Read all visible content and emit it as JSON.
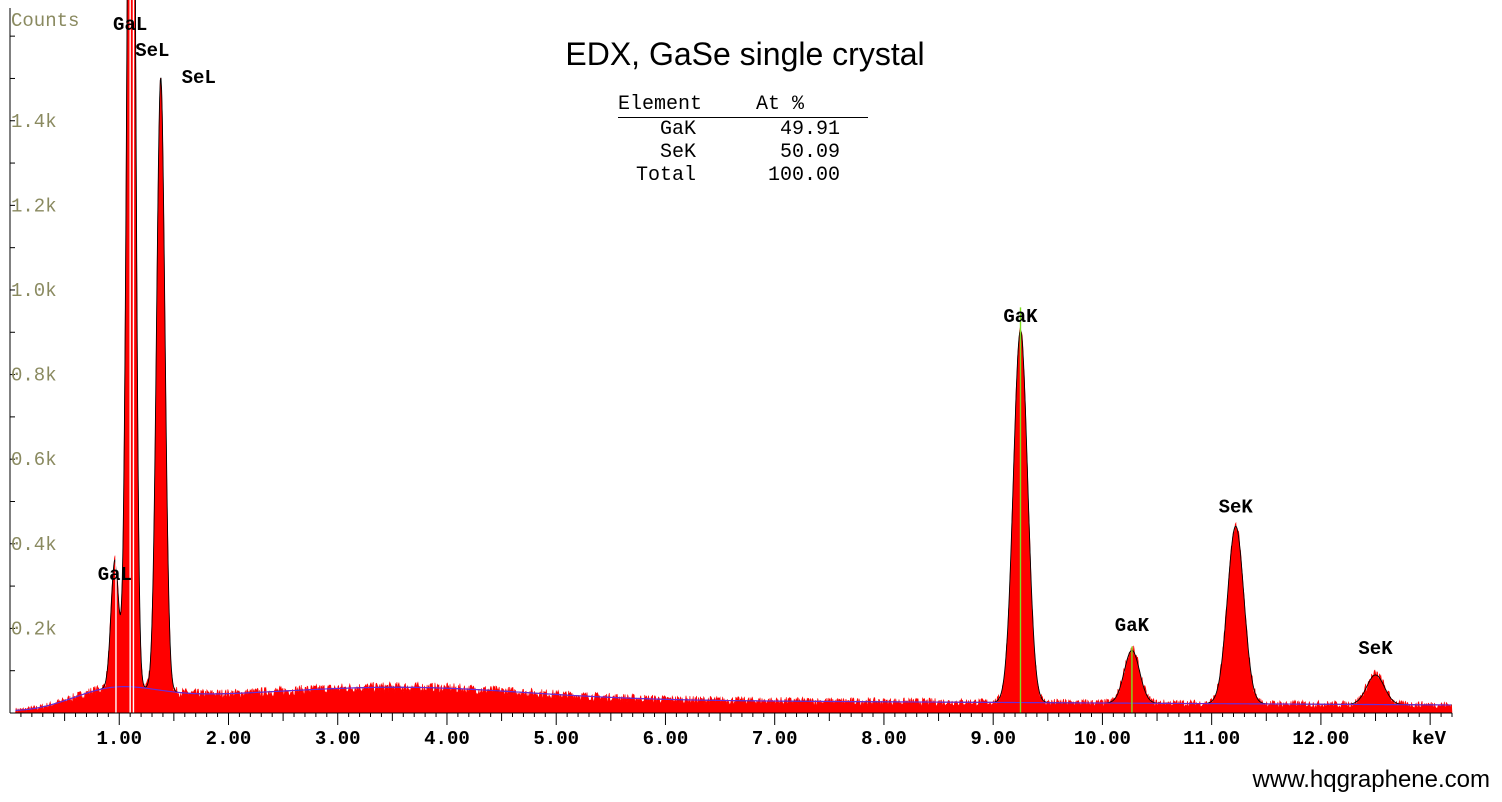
{
  "chart_data": {
    "type": "area",
    "title": "EDX, GaSe single crystal",
    "xlabel": "keV",
    "ylabel": "Counts",
    "xlim": [
      0.0,
      13.2
    ],
    "ylim": [
      0,
      1650
    ],
    "x_ticks": [
      1,
      2,
      3,
      4,
      5,
      6,
      7,
      8,
      9,
      10,
      11,
      12
    ],
    "x_tick_labels": [
      "1.00",
      "2.00",
      "3.00",
      "4.00",
      "5.00",
      "6.00",
      "7.00",
      "8.00",
      "9.00",
      "10.00",
      "11.00",
      "12.00"
    ],
    "y_ticks": [
      200,
      400,
      600,
      800,
      1000,
      1200,
      1400
    ],
    "y_tick_labels": [
      "0.2k",
      "0.4k",
      "0.6k",
      "0.8k",
      "1.0k",
      "1.2k",
      "1.4k"
    ],
    "grid": false,
    "background": {
      "type": "bremsstrahlung",
      "color": "#6b2bd6"
    },
    "peaks": [
      {
        "label": "GaL",
        "energy": 0.96,
        "height": 300,
        "width": 0.035
      },
      {
        "label": "GaL",
        "energy": 1.1,
        "height": 1620,
        "width": 0.035
      },
      {
        "label": "SeL",
        "energy": 1.12,
        "height": 1540,
        "width": 0.03
      },
      {
        "label": "SeL",
        "energy": 1.38,
        "height": 1450,
        "width": 0.038
      },
      {
        "label": "GaK",
        "energy": 9.25,
        "height": 880,
        "width": 0.065
      },
      {
        "label": "GaK",
        "energy": 10.27,
        "height": 125,
        "width": 0.07
      },
      {
        "label": "SeK",
        "energy": 11.22,
        "height": 420,
        "width": 0.075
      },
      {
        "label": "SeK",
        "energy": 12.5,
        "height": 70,
        "width": 0.08
      }
    ],
    "peak_labels": [
      {
        "text": "GaL",
        "energy": 1.1,
        "counts": 1620
      },
      {
        "text": "SeL",
        "energy": 1.12,
        "counts": 1545
      },
      {
        "text": "SeL",
        "energy": 1.38,
        "counts": 1470
      },
      {
        "text": "GaL",
        "energy": 0.96,
        "counts": 300
      },
      {
        "text": "GaK",
        "energy": 9.25,
        "counts": 910
      },
      {
        "text": "GaK",
        "energy": 10.27,
        "counts": 180
      },
      {
        "text": "SeK",
        "energy": 11.22,
        "counts": 460
      },
      {
        "text": "SeK",
        "energy": 12.5,
        "counts": 125
      }
    ],
    "marker_lines": [
      {
        "energy": 0.97,
        "color": "#ffffff"
      },
      {
        "energy": 1.1,
        "color": "#ffffff"
      },
      {
        "energy": 1.13,
        "color": "#ffffff"
      },
      {
        "energy": 9.25,
        "color": "#80e020"
      },
      {
        "energy": 10.27,
        "color": "#80e020"
      }
    ],
    "fill_color": "#ff0000",
    "outline_color": "#000000",
    "axis_label_color": "#8a8a60"
  },
  "results_table": {
    "headers": [
      "Element",
      "At %"
    ],
    "rows": [
      {
        "element": "GaK",
        "at_percent": "49.91"
      },
      {
        "element": "SeK",
        "at_percent": "50.09"
      },
      {
        "element": "Total",
        "at_percent": "100.00"
      }
    ]
  },
  "watermark": "www.hqgraphene.com"
}
